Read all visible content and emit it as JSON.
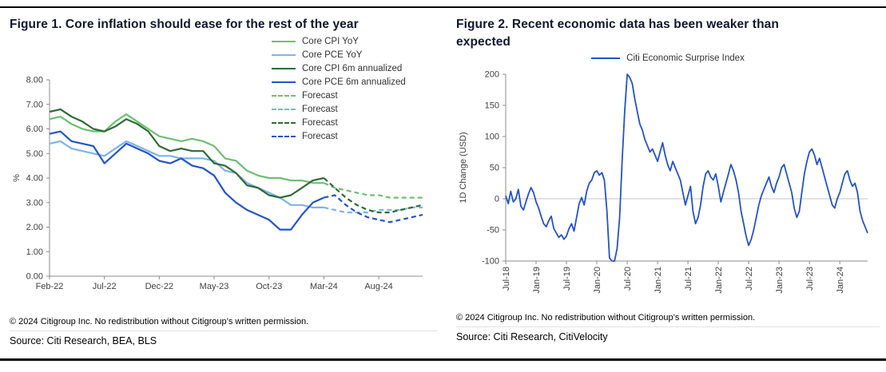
{
  "page": {
    "background": "#ffffff",
    "divider_color": "#000000"
  },
  "figure1": {
    "title": "Figure 1. Core inflation should ease for the rest of the year",
    "copyright": "© 2024 Citigroup Inc. No redistribution without Citigroup’s written permission.",
    "source": "Source: Citi Research, BEA, BLS"
  },
  "figure2": {
    "title": "Figure 2. Recent economic data has been weaker than expected",
    "copyright": "© 2024 Citigroup Inc. No redistribution without Citigroup’s written permission.",
    "source": "Source: Citi Research, CitiVelocity"
  },
  "colors": {
    "light_green": "#6fbe73",
    "light_blue": "#7cb4e8",
    "dark_green": "#2e6b34",
    "royal_blue": "#2353c8"
  },
  "chart_data": [
    {
      "id": "c1",
      "type": "line",
      "title": "Figure 1. Core inflation should ease for the rest of the year",
      "xlabel": "",
      "ylabel": "%",
      "ylim": [
        0,
        8
      ],
      "grid": false,
      "legend_position": "top-right",
      "x_count": 35,
      "x_unit": "month (Feb-22 through Dec-24, forecast after Mar-24)",
      "yticks": [
        {
          "v": 8,
          "label": "8.00"
        },
        {
          "v": 7,
          "label": "7.00"
        },
        {
          "v": 6,
          "label": "6.00"
        },
        {
          "v": 5,
          "label": "5.00"
        },
        {
          "v": 4,
          "label": "4.00"
        },
        {
          "v": 3,
          "label": "3.00"
        },
        {
          "v": 2,
          "label": "2.00"
        },
        {
          "v": 1,
          "label": "1.00"
        },
        {
          "v": 0,
          "label": "0.00"
        }
      ],
      "xticks": [
        {
          "i": 0,
          "label": "Feb-22"
        },
        {
          "i": 5,
          "label": "Jul-22"
        },
        {
          "i": 10,
          "label": "Dec-22"
        },
        {
          "i": 15,
          "label": "May-23"
        },
        {
          "i": 20,
          "label": "Oct-23"
        },
        {
          "i": 25,
          "label": "Mar-24"
        },
        {
          "i": 30,
          "label": "Aug-24"
        }
      ],
      "series": [
        {
          "name": "Core CPI YoY",
          "color": "#6fbe73",
          "dash": null,
          "start": 0,
          "values": [
            6.4,
            6.5,
            6.2,
            6.0,
            5.9,
            5.9,
            6.3,
            6.6,
            6.3,
            6.0,
            5.7,
            5.6,
            5.5,
            5.6,
            5.5,
            5.3,
            4.8,
            4.7,
            4.3,
            4.1,
            4.0,
            4.0,
            3.9,
            3.9,
            3.8,
            3.8
          ]
        },
        {
          "name": "Core PCE YoY",
          "color": "#7cb4e8",
          "dash": null,
          "start": 0,
          "values": [
            5.4,
            5.5,
            5.2,
            5.1,
            5.0,
            4.9,
            5.2,
            5.5,
            5.3,
            5.1,
            4.9,
            4.9,
            4.8,
            4.8,
            4.8,
            4.7,
            4.3,
            4.2,
            3.8,
            3.6,
            3.4,
            3.2,
            2.9,
            2.9,
            2.8,
            2.8
          ]
        },
        {
          "name": "Core CPI 6m annualized",
          "color": "#2e6b34",
          "dash": null,
          "start": 0,
          "values": [
            6.7,
            6.8,
            6.5,
            6.3,
            6.0,
            5.9,
            6.1,
            6.4,
            6.2,
            5.9,
            5.3,
            5.1,
            5.2,
            5.1,
            5.1,
            4.6,
            4.5,
            4.2,
            3.7,
            3.6,
            3.3,
            3.2,
            3.3,
            3.6,
            3.9,
            4.0
          ]
        },
        {
          "name": "Core PCE 6m annualized",
          "color": "#2353c8",
          "dash": null,
          "start": 0,
          "values": [
            5.8,
            5.9,
            5.5,
            5.4,
            5.3,
            4.6,
            5.0,
            5.4,
            5.2,
            5.0,
            4.7,
            4.6,
            4.8,
            4.5,
            4.4,
            4.1,
            3.4,
            3.0,
            2.7,
            2.5,
            2.3,
            1.9,
            1.9,
            2.5,
            3.0,
            3.2
          ]
        },
        {
          "name": "Forecast",
          "color": "#6fbe73",
          "dash": "6 4",
          "start": 25,
          "values": [
            3.8,
            3.6,
            3.5,
            3.4,
            3.3,
            3.3,
            3.2,
            3.2,
            3.2,
            3.2
          ]
        },
        {
          "name": "Forecast",
          "color": "#7cb4e8",
          "dash": "6 4",
          "start": 25,
          "values": [
            2.8,
            2.7,
            2.6,
            2.6,
            2.6,
            2.7,
            2.7,
            2.7,
            2.8,
            2.8
          ]
        },
        {
          "name": "Forecast",
          "color": "#2e6b34",
          "dash": "6 4",
          "start": 25,
          "values": [
            4.0,
            3.6,
            3.2,
            2.9,
            2.7,
            2.6,
            2.6,
            2.7,
            2.8,
            2.9
          ]
        },
        {
          "name": "Forecast",
          "color": "#2353c8",
          "dash": "6 4",
          "start": 25,
          "values": [
            3.2,
            3.3,
            2.9,
            2.6,
            2.4,
            2.3,
            2.2,
            2.3,
            2.4,
            2.5
          ]
        }
      ]
    },
    {
      "id": "c2",
      "type": "line",
      "title": "Figure 2. Recent economic data has been weaker than expected",
      "xlabel": "",
      "ylabel": "1D Change (USD)",
      "ylim": [
        -100,
        200
      ],
      "grid": false,
      "zero_line": true,
      "xtick_rotate": true,
      "legend_position": "top-center",
      "x_count": 144,
      "x_unit": "semi-monthly (Jul-18 through Jun-24)",
      "yticks": [
        {
          "v": 200,
          "label": "200"
        },
        {
          "v": 150,
          "label": "150"
        },
        {
          "v": 100,
          "label": "100"
        },
        {
          "v": 50,
          "label": "50"
        },
        {
          "v": 0,
          "label": "0"
        },
        {
          "v": -50,
          "label": "-50"
        },
        {
          "v": -100,
          "label": "-100"
        }
      ],
      "xticks": [
        {
          "i": 0,
          "label": "Jul-18"
        },
        {
          "i": 12,
          "label": "Jan-19"
        },
        {
          "i": 24,
          "label": "Jul-19"
        },
        {
          "i": 36,
          "label": "Jan-20"
        },
        {
          "i": 48,
          "label": "Jul-20"
        },
        {
          "i": 60,
          "label": "Jan-21"
        },
        {
          "i": 72,
          "label": "Jul-21"
        },
        {
          "i": 84,
          "label": "Jan-22"
        },
        {
          "i": 96,
          "label": "Jul-22"
        },
        {
          "i": 108,
          "label": "Jan-23"
        },
        {
          "i": 120,
          "label": "Jul-23"
        },
        {
          "i": 132,
          "label": "Jan-24"
        }
      ],
      "series": [
        {
          "name": "Citi Economic Surprise Index",
          "color": "#2353c8",
          "dash": null,
          "start": 0,
          "values": [
            5,
            -8,
            12,
            -5,
            0,
            15,
            -12,
            -18,
            -5,
            8,
            18,
            10,
            -5,
            -15,
            -28,
            -40,
            -45,
            -35,
            -28,
            -48,
            -55,
            -62,
            -58,
            -65,
            -60,
            -48,
            -40,
            -52,
            -30,
            -8,
            2,
            -10,
            12,
            25,
            30,
            42,
            45,
            38,
            42,
            30,
            -20,
            -95,
            -100,
            -100,
            -80,
            -30,
            60,
            140,
            200,
            195,
            185,
            160,
            140,
            120,
            110,
            95,
            85,
            75,
            80,
            70,
            60,
            75,
            90,
            70,
            55,
            45,
            60,
            50,
            40,
            30,
            10,
            -10,
            5,
            20,
            -20,
            -40,
            -30,
            -10,
            20,
            40,
            45,
            35,
            30,
            40,
            20,
            -5,
            10,
            25,
            40,
            55,
            45,
            30,
            10,
            -20,
            -40,
            -60,
            -75,
            -65,
            -50,
            -30,
            -10,
            5,
            15,
            25,
            35,
            20,
            10,
            25,
            35,
            50,
            55,
            40,
            25,
            10,
            -15,
            -30,
            -20,
            10,
            40,
            60,
            75,
            80,
            70,
            55,
            65,
            50,
            35,
            20,
            5,
            -10,
            -15,
            0,
            10,
            25,
            40,
            45,
            30,
            20,
            25,
            10,
            -20,
            -35,
            -45,
            -55
          ]
        }
      ]
    }
  ]
}
